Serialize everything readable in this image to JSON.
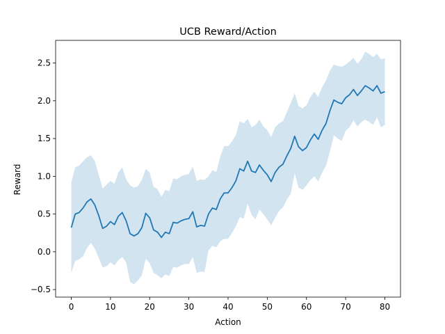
{
  "chart_data": {
    "type": "line",
    "title": "UCB Reward/Action",
    "xlabel": "Action",
    "ylabel": "Reward",
    "xlim": [
      -4,
      84
    ],
    "ylim": [
      -0.6,
      2.8
    ],
    "xticks": [
      0,
      10,
      20,
      30,
      40,
      50,
      60,
      70,
      80
    ],
    "yticks": [
      -0.5,
      0.0,
      0.5,
      1.0,
      1.5,
      2.0,
      2.5
    ],
    "grid": false,
    "legend": "none",
    "colors": {
      "line": "#1f77b4",
      "band": "#1f77b4",
      "band_opacity": 0.2
    },
    "series": [
      {
        "x": [
          0,
          1,
          2,
          3,
          4,
          5,
          6,
          7,
          8,
          9,
          10,
          11,
          12,
          13,
          14,
          15,
          16,
          17,
          18,
          19,
          20,
          21,
          22,
          23,
          24,
          25,
          26,
          27,
          28,
          29,
          30,
          31,
          32,
          33,
          34,
          35,
          36,
          37,
          38,
          39,
          40,
          41,
          42,
          43,
          44,
          45,
          46,
          47,
          48,
          49,
          50,
          51,
          52,
          53,
          54,
          55,
          56,
          57,
          58,
          59,
          60,
          61,
          62,
          63,
          64,
          65,
          66,
          67,
          68,
          69,
          70,
          71,
          72,
          73,
          74,
          75,
          76,
          77,
          78,
          79,
          80
        ],
        "mean": [
          0.32,
          0.5,
          0.52,
          0.58,
          0.66,
          0.7,
          0.62,
          0.48,
          0.31,
          0.34,
          0.4,
          0.36,
          0.47,
          0.52,
          0.41,
          0.24,
          0.21,
          0.24,
          0.32,
          0.51,
          0.45,
          0.29,
          0.26,
          0.19,
          0.26,
          0.24,
          0.39,
          0.38,
          0.41,
          0.43,
          0.44,
          0.53,
          0.33,
          0.35,
          0.34,
          0.5,
          0.58,
          0.56,
          0.7,
          0.78,
          0.78,
          0.85,
          0.94,
          1.1,
          1.07,
          1.2,
          1.07,
          1.05,
          1.15,
          1.08,
          1.02,
          0.93,
          1.05,
          1.12,
          1.16,
          1.27,
          1.37,
          1.53,
          1.39,
          1.34,
          1.38,
          1.48,
          1.56,
          1.49,
          1.61,
          1.7,
          1.87,
          2.01,
          1.98,
          1.96,
          2.04,
          2.08,
          2.15,
          2.07,
          2.13,
          2.2,
          2.17,
          2.13,
          2.2,
          2.1,
          2.12
        ],
        "upper": [
          0.92,
          1.12,
          1.14,
          1.2,
          1.25,
          1.28,
          1.2,
          1.02,
          0.84,
          0.89,
          0.94,
          0.9,
          1.05,
          1.12,
          0.96,
          0.88,
          0.85,
          0.87,
          0.95,
          1.1,
          1.05,
          0.86,
          0.83,
          0.73,
          0.82,
          0.8,
          0.97,
          0.96,
          1.0,
          1.02,
          1.03,
          1.13,
          0.94,
          0.96,
          0.95,
          1.0,
          1.08,
          1.06,
          1.26,
          1.4,
          1.4,
          1.46,
          1.55,
          1.73,
          1.7,
          1.76,
          1.65,
          1.68,
          1.75,
          1.66,
          1.61,
          1.52,
          1.65,
          1.7,
          1.73,
          1.85,
          1.97,
          2.1,
          1.93,
          1.9,
          1.94,
          2.05,
          2.12,
          2.05,
          2.18,
          2.27,
          2.4,
          2.48,
          2.46,
          2.45,
          2.48,
          2.52,
          2.57,
          2.49,
          2.55,
          2.65,
          2.62,
          2.58,
          2.62,
          2.55,
          2.56
        ],
        "lower": [
          -0.28,
          -0.12,
          -0.1,
          -0.06,
          0.05,
          0.12,
          0.04,
          -0.08,
          -0.21,
          -0.19,
          -0.14,
          -0.18,
          -0.11,
          -0.07,
          -0.14,
          -0.4,
          -0.43,
          -0.38,
          -0.31,
          -0.09,
          -0.15,
          -0.28,
          -0.31,
          -0.35,
          -0.3,
          -0.32,
          -0.2,
          -0.21,
          -0.18,
          -0.16,
          -0.16,
          -0.07,
          -0.28,
          -0.26,
          -0.27,
          0.02,
          0.08,
          0.06,
          0.14,
          0.17,
          0.17,
          0.25,
          0.34,
          0.46,
          0.44,
          0.64,
          0.49,
          0.43,
          0.56,
          0.5,
          0.43,
          0.35,
          0.45,
          0.54,
          0.59,
          0.69,
          0.77,
          1.04,
          0.85,
          0.82,
          0.88,
          0.95,
          1.0,
          0.93,
          1.05,
          1.14,
          1.33,
          1.54,
          1.5,
          1.47,
          1.6,
          1.65,
          1.74,
          1.66,
          1.72,
          1.75,
          1.72,
          1.68,
          1.78,
          1.65,
          1.68
        ]
      }
    ]
  }
}
